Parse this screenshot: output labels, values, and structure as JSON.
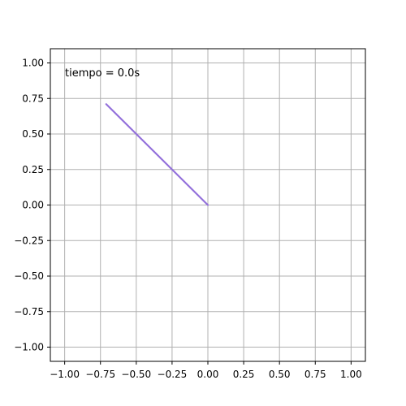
{
  "chart_data": {
    "type": "line",
    "title": "",
    "xlabel": "",
    "ylabel": "",
    "xlim": [
      -1.1,
      1.1
    ],
    "ylim": [
      -1.1,
      1.1
    ],
    "grid": true,
    "xticks": [
      -1.0,
      -0.75,
      -0.5,
      -0.25,
      0.0,
      0.25,
      0.5,
      0.75,
      1.0
    ],
    "yticks": [
      -1.0,
      -0.75,
      -0.5,
      -0.25,
      0.0,
      0.25,
      0.5,
      0.75,
      1.0
    ],
    "xtick_labels": [
      "−1.00",
      "−0.75",
      "−0.50",
      "−0.25",
      "0.00",
      "0.25",
      "0.50",
      "0.75",
      "1.00"
    ],
    "ytick_labels": [
      "−1.00",
      "−0.75",
      "−0.50",
      "−0.25",
      "0.00",
      "0.25",
      "0.50",
      "0.75",
      "1.00"
    ],
    "series": [
      {
        "x": [
          0.0,
          -0.71
        ],
        "y": [
          0.0,
          0.71
        ],
        "color": "#9370db"
      }
    ],
    "annotation": "tiempo = 0.0s"
  }
}
